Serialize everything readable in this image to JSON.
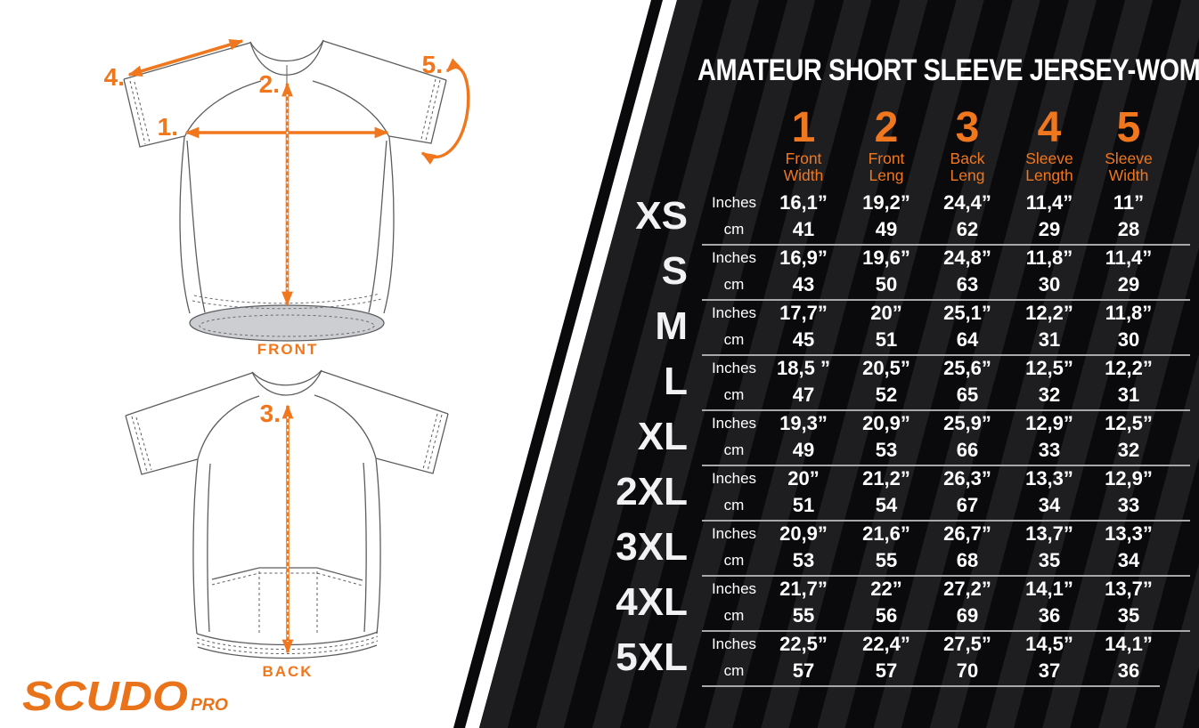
{
  "title": "AMATEUR SHORT SLEEVE JERSEY-WOMAN",
  "header": {
    "unit_inches": "Inches",
    "unit_cm": "cm",
    "columns": [
      {
        "num": "1",
        "label": [
          "Front",
          "Width"
        ]
      },
      {
        "num": "2",
        "label": [
          "Front",
          "Leng"
        ]
      },
      {
        "num": "3",
        "label": [
          "Back",
          "Leng"
        ]
      },
      {
        "num": "4",
        "label": [
          "Sleeve",
          "Length"
        ]
      },
      {
        "num": "5",
        "label": [
          "Sleeve",
          "Width"
        ]
      }
    ]
  },
  "rows": [
    {
      "size": "XS",
      "inches": [
        "16,1”",
        "19,2”",
        "24,4”",
        "11,4”",
        "11”"
      ],
      "cm": [
        "41",
        "49",
        "62",
        "29",
        "28"
      ]
    },
    {
      "size": "S",
      "inches": [
        "16,9”",
        "19,6”",
        "24,8”",
        "11,8”",
        "11,4”"
      ],
      "cm": [
        "43",
        "50",
        "63",
        "30",
        "29"
      ]
    },
    {
      "size": "M",
      "inches": [
        "17,7”",
        "20”",
        "25,1”",
        "12,2”",
        "11,8”"
      ],
      "cm": [
        "45",
        "51",
        "64",
        "31",
        "30"
      ]
    },
    {
      "size": "L",
      "inches": [
        "18,5 ”",
        "20,5”",
        "25,6”",
        "12,5”",
        "12,2”"
      ],
      "cm": [
        "47",
        "52",
        "65",
        "32",
        "31"
      ]
    },
    {
      "size": "XL",
      "inches": [
        "19,3”",
        "20,9”",
        "25,9”",
        "12,9”",
        "12,5”"
      ],
      "cm": [
        "49",
        "53",
        "66",
        "33",
        "32"
      ]
    },
    {
      "size": "2XL",
      "inches": [
        "20”",
        "21,2”",
        "26,3”",
        "13,3”",
        "12,9”"
      ],
      "cm": [
        "51",
        "54",
        "67",
        "34",
        "33"
      ]
    },
    {
      "size": "3XL",
      "inches": [
        "20,9”",
        "21,6”",
        "26,7”",
        "13,7”",
        "13,3”"
      ],
      "cm": [
        "53",
        "55",
        "68",
        "35",
        "34"
      ]
    },
    {
      "size": "4XL",
      "inches": [
        "21,7”",
        "22”",
        "27,2”",
        "14,1”",
        "13,7”"
      ],
      "cm": [
        "55",
        "56",
        "69",
        "36",
        "35"
      ]
    },
    {
      "size": "5XL",
      "inches": [
        "22,5”",
        "22,4”",
        "27,5”",
        "14,5”",
        "14,1”"
      ],
      "cm": [
        "57",
        "57",
        "70",
        "37",
        "36"
      ]
    }
  ],
  "diagram": {
    "front_label": "FRONT",
    "back_label": "BACK",
    "markers": {
      "m1": "1.",
      "m2": "2.",
      "m3": "3.",
      "m4": "4.",
      "m5": "5."
    },
    "logo": {
      "brand": "SCUDO",
      "sub": "PRO"
    }
  },
  "colors": {
    "accent_orange": "#F0771E",
    "logo_orange": "#E9731B",
    "panel_black": "#0A0A0C",
    "panel_stripe": "#1E1E20",
    "text_white": "#FFFFFF",
    "row_separator": "#A8A8A8",
    "jersey_line_gray": "#5C5D60",
    "hem_fill": "#CDCED1"
  }
}
